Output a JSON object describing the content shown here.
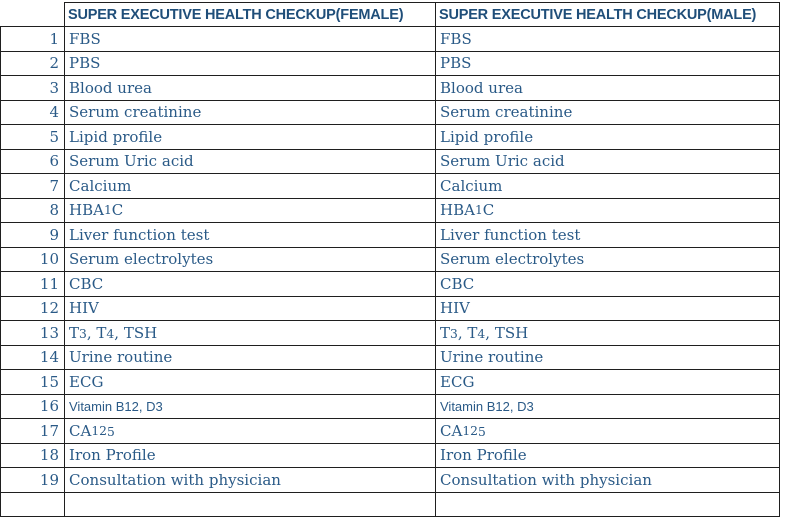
{
  "table": {
    "female_header": "SUPER EXECUTIVE HEALTH CHECKUP(FEMALE)",
    "male_header": "SUPER EXECUTIVE HEALTH CHECKUP(MALE)",
    "rows": [
      {
        "num": "1",
        "female": "FBS",
        "male": "FBS"
      },
      {
        "num": "2",
        "female": "PBS",
        "male": "PBS"
      },
      {
        "num": "3",
        "female": "Blood urea",
        "male": "Blood urea"
      },
      {
        "num": "4",
        "female": "Serum creatinine",
        "male": "Serum creatinine"
      },
      {
        "num": "5",
        "female": "Lipid profile",
        "male": "Lipid profile"
      },
      {
        "num": "6",
        "female": "Serum Uric acid",
        "male": "Serum Uric acid"
      },
      {
        "num": "7",
        "female": "Calcium",
        "male": "Calcium"
      },
      {
        "num": "8",
        "female": "HBA1C",
        "male": "HBA1C"
      },
      {
        "num": "9",
        "female": "Liver function test",
        "male": "Liver function test"
      },
      {
        "num": "10",
        "female": "Serum electrolytes",
        "male": "Serum electrolytes"
      },
      {
        "num": "11",
        "female": "CBC",
        "male": "CBC"
      },
      {
        "num": "12",
        "female": "HIV",
        "male": "HIV"
      },
      {
        "num": "13",
        "female": "T3, T4, TSH",
        "male": "T3, T4, TSH"
      },
      {
        "num": "14",
        "female": "Urine routine",
        "male": "Urine routine"
      },
      {
        "num": "15",
        "female": "ECG",
        "male": "ECG"
      },
      {
        "num": "16",
        "female": "Vitamin B12, D3",
        "male": "Vitamin B12, D3",
        "sans": true
      },
      {
        "num": "17",
        "female": "CA125",
        "male": "CA125"
      },
      {
        "num": "18",
        "female": "Iron Profile",
        "male": "Iron Profile"
      },
      {
        "num": "19",
        "female": "Consultation with physician",
        "male": "Consultation with physician"
      },
      {
        "num": "",
        "female": "",
        "male": ""
      }
    ],
    "colors": {
      "header_text": "#1F4E79",
      "body_text": "#2A5A87",
      "gridline": "#1F1F1F",
      "background": "#FFFFFF"
    }
  }
}
